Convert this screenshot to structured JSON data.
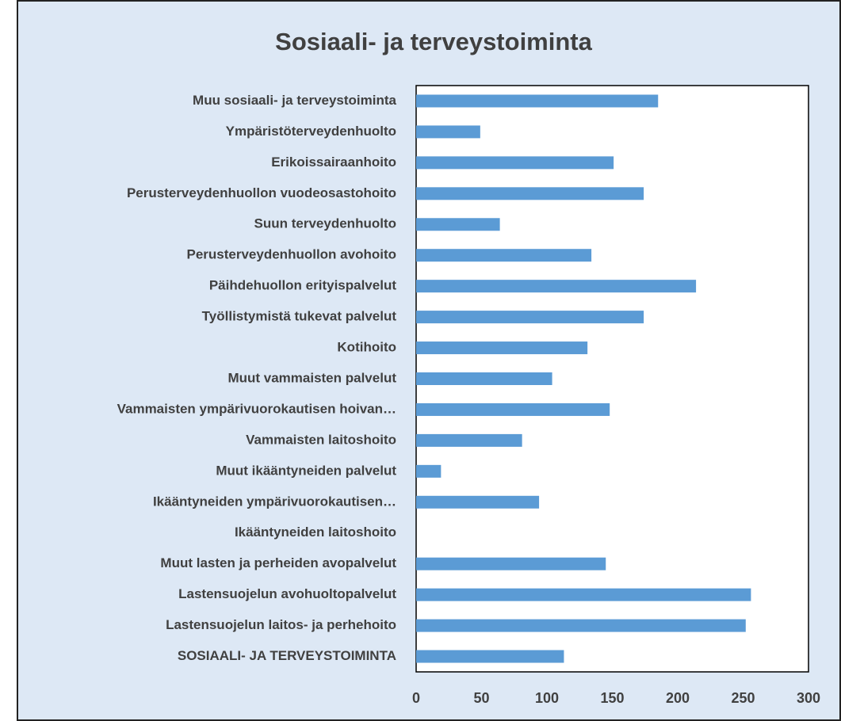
{
  "chart_data": {
    "type": "bar",
    "orientation": "horizontal",
    "title": "Sosiaali- ja terveystoiminta",
    "categories": [
      "Muu sosiaali- ja terveystoiminta",
      "Ympäristöterveydenhuolto",
      "Erikoissairaanhoito",
      "Perusterveydenhuollon vuodeosastohoito",
      "Suun terveydenhuolto",
      "Perusterveydenhuollon avohoito",
      "Päihdehuollon erityispalvelut",
      "Työllistymistä tukevat palvelut",
      "Kotihoito",
      "Muut vammaisten palvelut",
      "Vammaisten ympärivuorokautisen hoivan…",
      "Vammaisten laitoshoito",
      "Muut ikääntyneiden palvelut",
      "Ikääntyneiden ympärivuorokautisen…",
      "Ikääntyneiden laitoshoito",
      "Muut lasten ja perheiden avopalvelut",
      "Lastensuojelun avohuoltopalvelut",
      "Lastensuojelun laitos- ja perhehoito",
      "SOSIAALI- JA TERVEYSTOIMINTA"
    ],
    "values": [
      185,
      49,
      151,
      174,
      64,
      134,
      214,
      174,
      131,
      104,
      148,
      81,
      19,
      94,
      0,
      145,
      256,
      252,
      113
    ],
    "color": "#5b9bd5",
    "xlim": [
      0,
      300
    ],
    "xticks": [
      0,
      50,
      100,
      150,
      200,
      250,
      300
    ],
    "grid": false
  }
}
